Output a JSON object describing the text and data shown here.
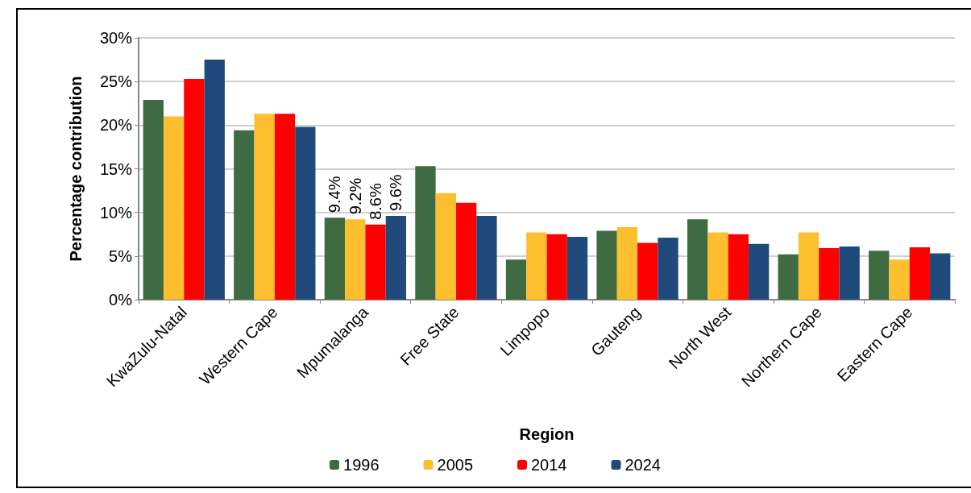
{
  "chart_data": {
    "type": "bar",
    "xlabel": "Region",
    "ylabel": "Percentage contribution",
    "categories": [
      "KwaZulu-Natal",
      "Western Cape",
      "Mpumalanga",
      "Free State",
      "Limpopo",
      "Gauteng",
      "North West",
      "Northern Cape",
      "Eastern Cape"
    ],
    "series": [
      {
        "name": "1996",
        "color": "#3e6b41",
        "values": [
          22.9,
          19.4,
          9.4,
          15.3,
          4.6,
          7.9,
          9.2,
          5.2,
          5.6
        ],
        "value_labels": [
          null,
          null,
          "9.4%",
          null,
          null,
          null,
          null,
          null,
          null
        ]
      },
      {
        "name": "2005",
        "color": "#fdbf2d",
        "values": [
          21.0,
          21.3,
          9.2,
          12.2,
          7.7,
          8.3,
          7.7,
          7.7,
          4.6
        ],
        "value_labels": [
          null,
          null,
          "9.2%",
          null,
          null,
          null,
          null,
          null,
          null
        ]
      },
      {
        "name": "2014",
        "color": "#ff0000",
        "values": [
          25.3,
          21.3,
          8.6,
          11.1,
          7.5,
          6.5,
          7.5,
          5.9,
          6.0
        ],
        "value_labels": [
          null,
          null,
          "8.6%",
          null,
          null,
          null,
          null,
          null,
          null
        ]
      },
      {
        "name": "2024",
        "color": "#214a7c",
        "values": [
          27.5,
          19.8,
          9.6,
          9.6,
          7.2,
          7.1,
          6.4,
          6.1,
          5.3
        ],
        "value_labels": [
          null,
          null,
          "9.6%",
          null,
          null,
          null,
          null,
          null,
          null
        ]
      }
    ],
    "ylim": [
      0,
      30
    ],
    "yticks": [
      {
        "value": 0,
        "label": "0%"
      },
      {
        "value": 5,
        "label": "5%"
      },
      {
        "value": 10,
        "label": "10%"
      },
      {
        "value": 15,
        "label": "15%"
      },
      {
        "value": 20,
        "label": "20%"
      },
      {
        "value": 25,
        "label": "25%"
      },
      {
        "value": 30,
        "label": "30%"
      }
    ],
    "grid": "y",
    "legend": "bottom"
  }
}
